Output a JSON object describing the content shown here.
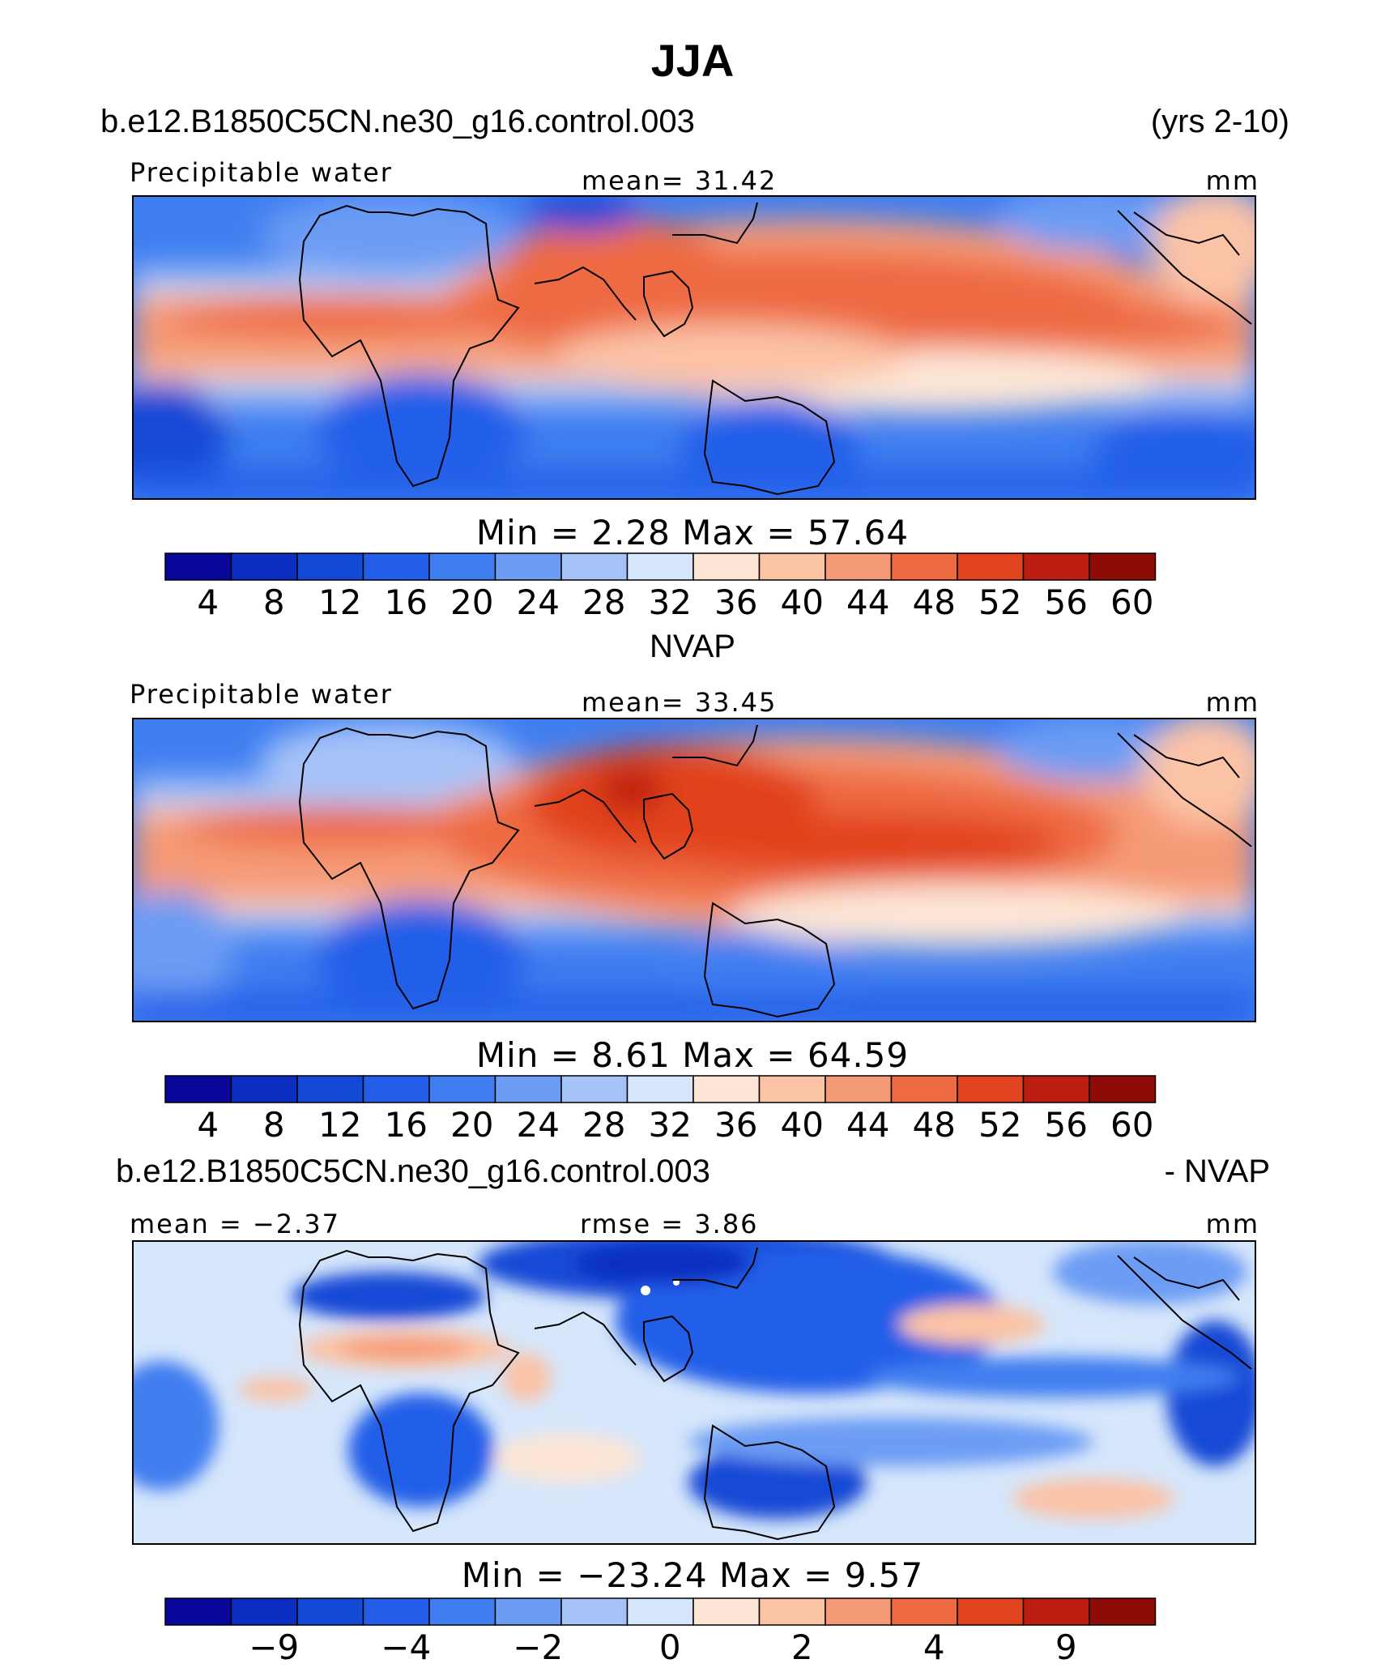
{
  "header": {
    "title": "JJA",
    "case_name": "b.e12.B1850C5CN.ne30_g16.control.003",
    "years": "(yrs 2-10)",
    "panel2_title": "NVAP",
    "diff_case_name": "b.e12.B1850C5CN.ne30_g16.control.003",
    "diff_suffix": "- NVAP"
  },
  "panels": [
    {
      "variable": "Precipitable water",
      "stat_left": "",
      "stat_center": "mean=   31.42",
      "units": "mm",
      "minmax": "Min  =     2.28  Max  =    57.64",
      "colorbar_labels": [
        "4",
        "8",
        "12",
        "16",
        "20",
        "24",
        "28",
        "32",
        "36",
        "40",
        "44",
        "48",
        "52",
        "56",
        "60"
      ]
    },
    {
      "variable": "Precipitable water",
      "stat_left": "",
      "stat_center": "mean=   33.45",
      "units": "mm",
      "minmax": "Min  =     8.61  Max  =    64.59",
      "colorbar_labels": [
        "4",
        "8",
        "12",
        "16",
        "20",
        "24",
        "28",
        "32",
        "36",
        "40",
        "44",
        "48",
        "52",
        "56",
        "60"
      ]
    },
    {
      "variable": "",
      "stat_left": "mean  =   −2.37",
      "stat_center": "rmse  =     3.86",
      "units": "mm",
      "minmax": "Min  =  −23.24  Max  =     9.57",
      "colorbar_labels": [
        "",
        "−9",
        "",
        "−4",
        "",
        "−2",
        "",
        "0",
        "",
        "2",
        "",
        "4",
        "",
        "9",
        ""
      ]
    }
  ],
  "colors": {
    "palette": [
      "#08079a",
      "#0b2ec0",
      "#1449d6",
      "#245ee8",
      "#3f7ef0",
      "#6c9cf4",
      "#a6c3f8",
      "#d6e6fb",
      "#fde6d6",
      "#fbc3a6",
      "#f59a76",
      "#ee6a43",
      "#e1431f",
      "#bb1d10",
      "#8e0c08"
    ]
  }
}
